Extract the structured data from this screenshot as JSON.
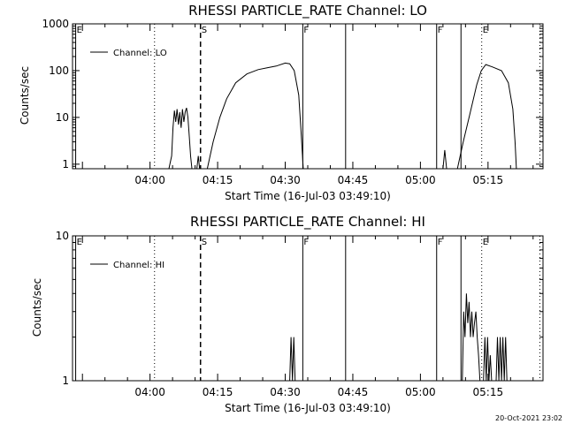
{
  "footer_date": "20-Oct-2021 23:02",
  "chart_data": [
    {
      "type": "line",
      "title": "RHESSI PARTICLE_RATE Channel: LO",
      "xlabel": "Start Time (16-Jul-03 03:49:10)",
      "ylabel": "Counts/sec",
      "yscale": "log",
      "ylim": [
        0.8,
        1000
      ],
      "xlim_min": [
        -17.2,
        87.2
      ],
      "x_unit": "minutes after 04:00",
      "xtick_labels": [
        "04:00",
        "04:15",
        "04:30",
        "04:45",
        "05:00",
        "05:15"
      ],
      "xtick_values": [
        0,
        15,
        30,
        45,
        60,
        75
      ],
      "ytick_labels": [
        "1",
        "10",
        "100",
        "1000"
      ],
      "ytick_values": [
        1,
        10,
        100,
        1000
      ],
      "legend": "Channel: LO",
      "markers": [
        {
          "label": "E",
          "t": -16.5,
          "style": "solid"
        },
        {
          "label": "S",
          "t": 11.2,
          "style": "dashed"
        },
        {
          "label": "F",
          "t": 33.9,
          "style": "solid"
        },
        {
          "label": "F",
          "t": 63.6,
          "style": "solid"
        },
        {
          "label": "E",
          "t": 73.6,
          "style": "dotted"
        }
      ],
      "extra_lines": [
        {
          "t": 1.0,
          "style": "dotted"
        },
        {
          "t": 43.4,
          "style": "solid"
        },
        {
          "t": 69.0,
          "style": "solid"
        },
        {
          "t": 86.5,
          "style": "dotted"
        }
      ],
      "series": [
        {
          "name": "Channel: LO",
          "points": [
            [
              4.2,
              0.8
            ],
            [
              4.8,
              1.5
            ],
            [
              5.1,
              6
            ],
            [
              5.4,
              14
            ],
            [
              5.7,
              8
            ],
            [
              6.0,
              15
            ],
            [
              6.3,
              7
            ],
            [
              6.6,
              13
            ],
            [
              6.9,
              6
            ],
            [
              7.2,
              15
            ],
            [
              7.5,
              8
            ],
            [
              7.8,
              13
            ],
            [
              8.1,
              16
            ],
            [
              8.4,
              10
            ],
            [
              8.7,
              4
            ],
            [
              9.0,
              1.5
            ],
            [
              9.3,
              0.8
            ]
          ]
        },
        {
          "name": "Channel: LO",
          "points": [
            [
              10.4,
              0.8
            ],
            [
              10.7,
              1.5
            ],
            [
              11.0,
              0.8
            ]
          ]
        },
        {
          "name": "Channel: LO",
          "points": [
            [
              12.7,
              0.8
            ],
            [
              14.0,
              3
            ],
            [
              15.5,
              10
            ],
            [
              17.0,
              25
            ],
            [
              19.0,
              55
            ],
            [
              21.5,
              85
            ],
            [
              24.0,
              105
            ],
            [
              26.0,
              115
            ],
            [
              28.0,
              125
            ],
            [
              30.0,
              145
            ],
            [
              31.0,
              140
            ],
            [
              32.0,
              100
            ],
            [
              33.0,
              30
            ],
            [
              33.5,
              5
            ],
            [
              34.0,
              0.8
            ]
          ]
        },
        {
          "name": "Channel: LO",
          "points": [
            [
              65.0,
              0.8
            ],
            [
              65.4,
              2
            ],
            [
              65.8,
              0.8
            ]
          ]
        },
        {
          "name": "Channel: LO",
          "points": [
            [
              68.2,
              0.8
            ],
            [
              69.5,
              3
            ],
            [
              71.0,
              12
            ],
            [
              72.5,
              50
            ],
            [
              73.5,
              100
            ],
            [
              74.5,
              135
            ],
            [
              76.0,
              120
            ],
            [
              78.0,
              100
            ],
            [
              79.5,
              55
            ],
            [
              80.5,
              15
            ],
            [
              81.0,
              3
            ],
            [
              81.3,
              0.8
            ]
          ]
        }
      ]
    },
    {
      "type": "line",
      "title": "RHESSI PARTICLE_RATE Channel: HI",
      "xlabel": "Start Time (16-Jul-03 03:49:10)",
      "ylabel": "Counts/sec",
      "yscale": "log",
      "ylim": [
        1,
        10
      ],
      "xlim_min": [
        -17.2,
        87.2
      ],
      "x_unit": "minutes after 04:00",
      "xtick_labels": [
        "04:00",
        "04:15",
        "04:30",
        "04:45",
        "05:00",
        "05:15"
      ],
      "xtick_values": [
        0,
        15,
        30,
        45,
        60,
        75
      ],
      "ytick_labels": [
        "1",
        "10"
      ],
      "ytick_values": [
        1,
        10
      ],
      "legend": "Channel: HI",
      "markers": [
        {
          "label": "E",
          "t": -16.5,
          "style": "solid"
        },
        {
          "label": "S",
          "t": 11.2,
          "style": "dashed"
        },
        {
          "label": "F",
          "t": 33.9,
          "style": "solid"
        },
        {
          "label": "F",
          "t": 63.6,
          "style": "solid"
        },
        {
          "label": "E",
          "t": 73.6,
          "style": "dotted"
        }
      ],
      "extra_lines": [
        {
          "t": 1.0,
          "style": "dotted"
        },
        {
          "t": 43.4,
          "style": "solid"
        },
        {
          "t": 69.0,
          "style": "solid"
        },
        {
          "t": 86.5,
          "style": "dotted"
        }
      ],
      "series": [
        {
          "name": "Channel: HI",
          "points": [
            [
              31.0,
              1
            ],
            [
              31.3,
              2
            ],
            [
              31.6,
              1
            ],
            [
              31.9,
              2
            ],
            [
              32.2,
              1
            ]
          ]
        },
        {
          "name": "Channel: HI",
          "points": [
            [
              69.3,
              1
            ],
            [
              69.6,
              3
            ],
            [
              69.9,
              2
            ],
            [
              70.2,
              4
            ],
            [
              70.5,
              2.5
            ],
            [
              70.8,
              3.5
            ],
            [
              71.1,
              2
            ],
            [
              71.4,
              3
            ],
            [
              71.7,
              2
            ],
            [
              72.0,
              2.5
            ],
            [
              72.3,
              3
            ],
            [
              72.6,
              2
            ],
            [
              72.9,
              1.5
            ],
            [
              73.2,
              1
            ]
          ]
        },
        {
          "name": "Channel: HI",
          "points": [
            [
              74.0,
              1
            ],
            [
              74.3,
              2
            ],
            [
              74.6,
              1
            ],
            [
              74.9,
              2
            ],
            [
              75.2,
              1
            ],
            [
              75.5,
              1.5
            ],
            [
              75.8,
              1
            ]
          ]
        },
        {
          "name": "Channel: HI",
          "points": [
            [
              76.8,
              1
            ],
            [
              77.1,
              2
            ],
            [
              77.4,
              1
            ],
            [
              77.7,
              2
            ],
            [
              78.0,
              1
            ],
            [
              78.3,
              2
            ],
            [
              78.6,
              1
            ],
            [
              78.9,
              2
            ],
            [
              79.2,
              1
            ]
          ]
        }
      ]
    }
  ]
}
